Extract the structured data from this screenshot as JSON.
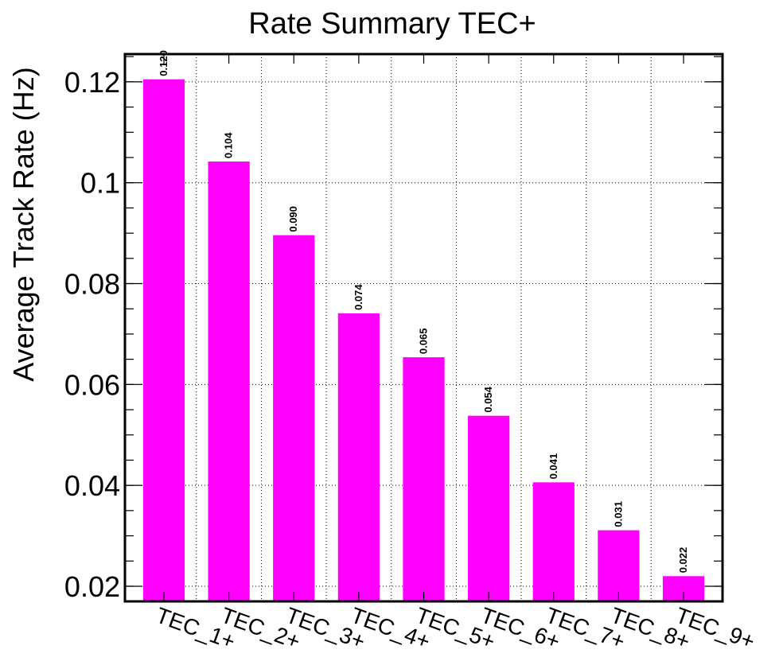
{
  "chart_data": {
    "type": "bar",
    "title": "Rate Summary TEC+",
    "xlabel": "",
    "ylabel": "Average Track Rate (Hz)",
    "categories": [
      "TEC_1+",
      "TEC_2+",
      "TEC_3+",
      "TEC_4+",
      "TEC_5+",
      "TEC_6+",
      "TEC_7+",
      "TEC_8+",
      "TEC_9+"
    ],
    "values": [
      0.1205,
      0.1042,
      0.0896,
      0.0741,
      0.0654,
      0.0538,
      0.0406,
      0.0311,
      0.022
    ],
    "value_labels": [
      "0.120",
      "0.104",
      "0.090",
      "0.074",
      "0.065",
      "0.054",
      "0.041",
      "0.031",
      "0.022"
    ],
    "ylim": [
      0.017,
      0.1255
    ],
    "yticks": [
      0.02,
      0.04,
      0.06,
      0.08,
      0.1,
      0.12
    ],
    "ytick_labels": [
      "0.02",
      "0.04",
      "0.06",
      "0.08",
      "0.1",
      "0.12"
    ],
    "grid": true,
    "bar_color": "#ff00ff"
  }
}
